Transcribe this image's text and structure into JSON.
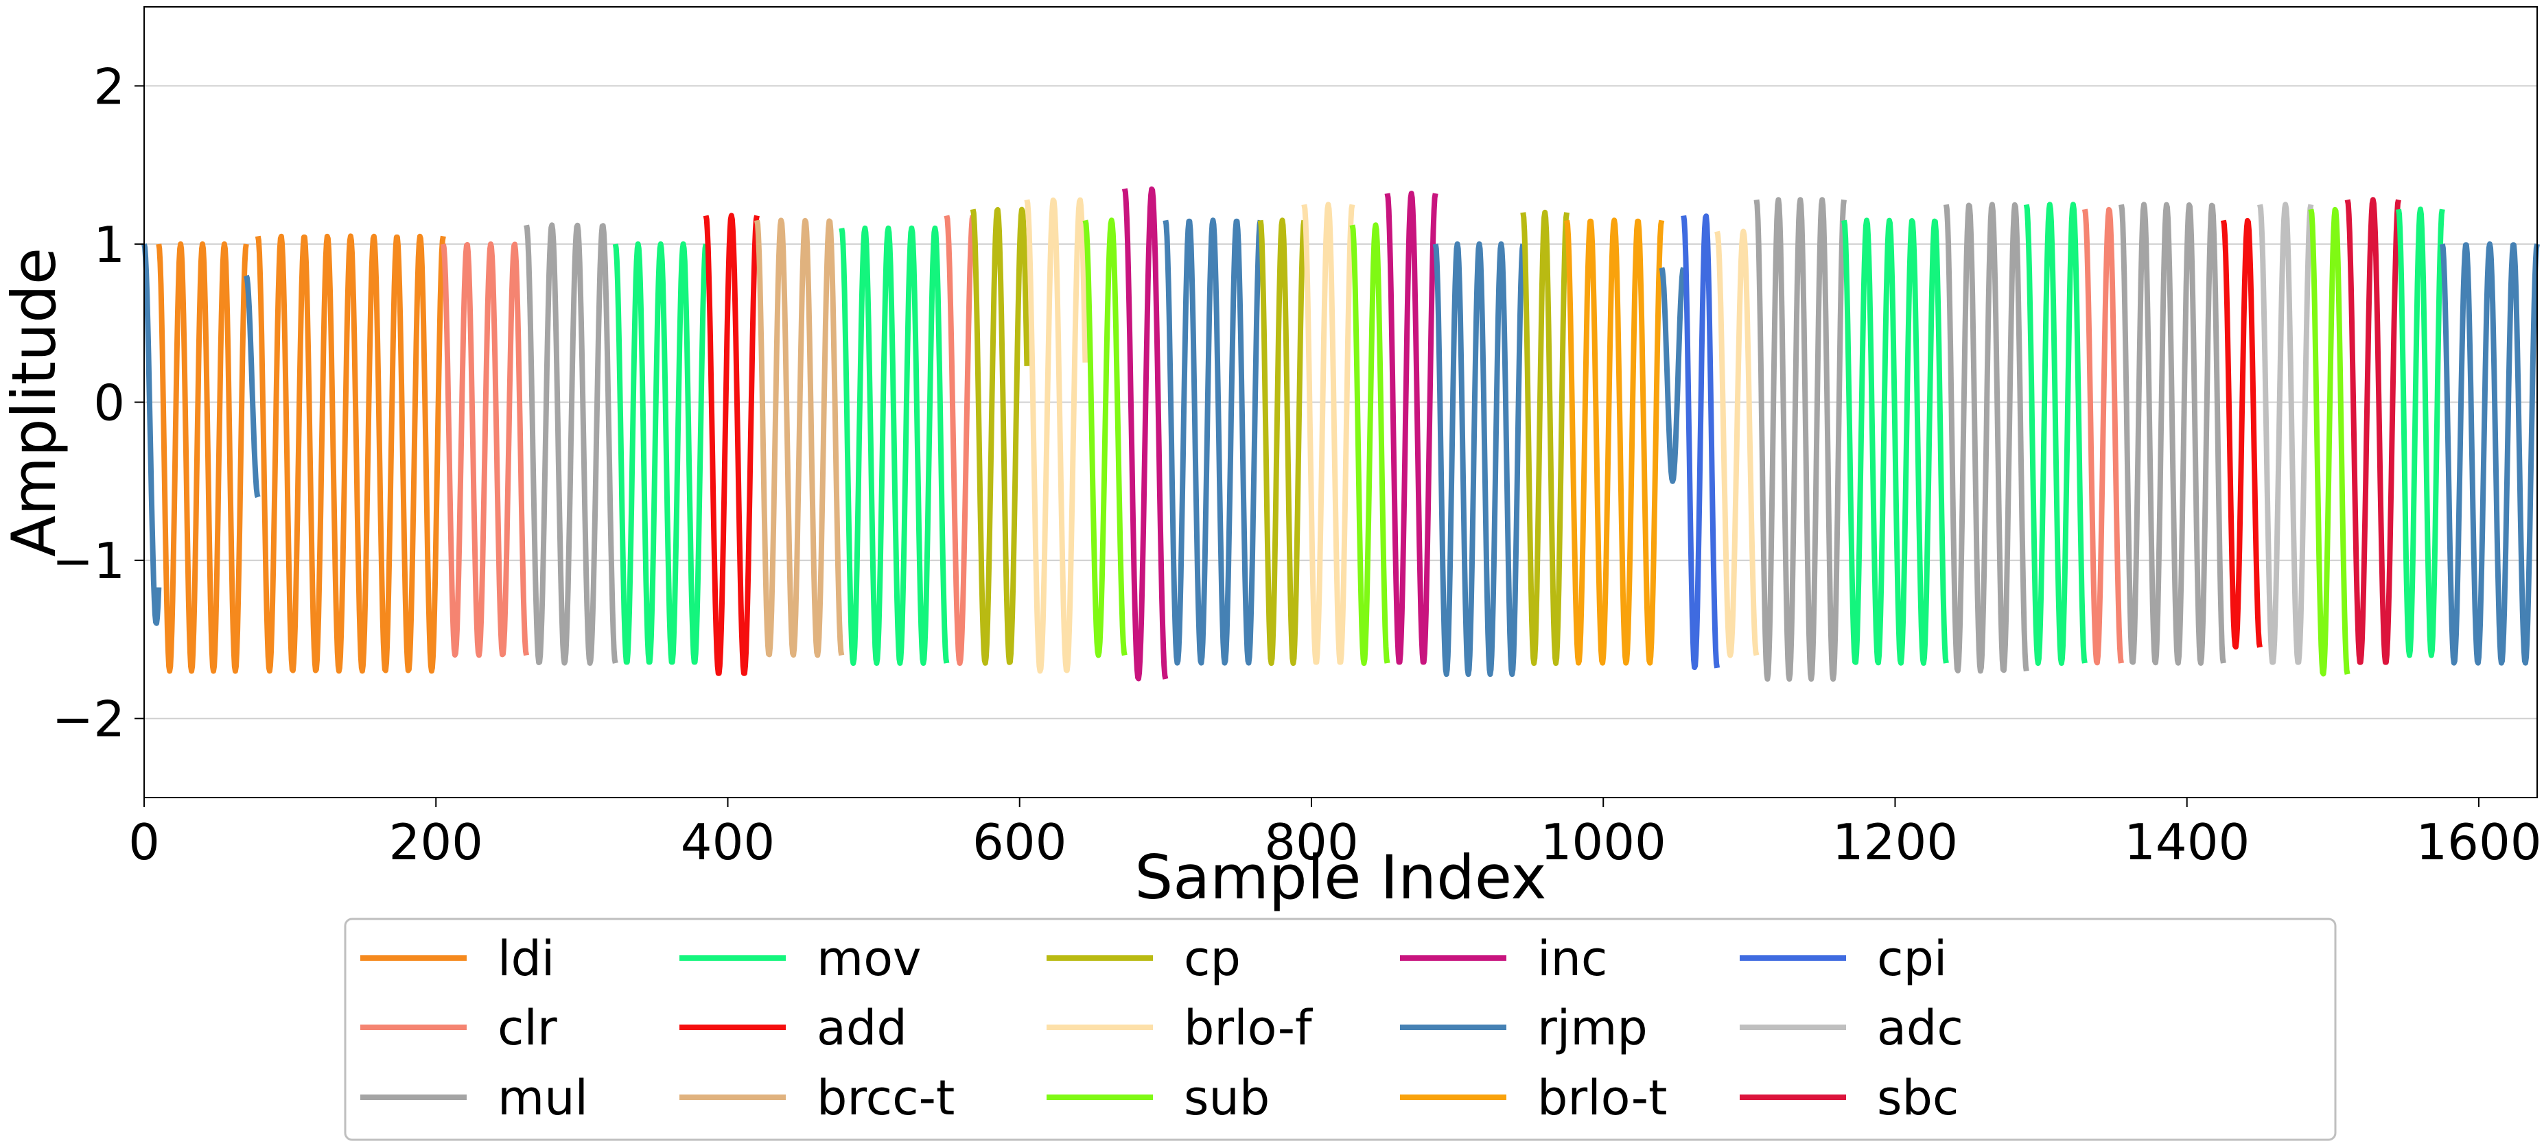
{
  "chart_data": {
    "type": "line",
    "title": "",
    "xlabel": "Sample Index",
    "ylabel": "Amplitude",
    "xlim": [
      0,
      1640
    ],
    "ylim": [
      -2.5,
      2.5
    ],
    "x_ticks": [
      0,
      200,
      400,
      600,
      800,
      1000,
      1200,
      1400,
      1600
    ],
    "x_tick_labels": [
      "0",
      "200",
      "400",
      "600",
      "800",
      "1000",
      "1200",
      "1400",
      "1600"
    ],
    "y_ticks": [
      -2,
      -1,
      0,
      1,
      2
    ],
    "y_tick_labels": [
      "−2",
      "−1",
      "0",
      "1",
      "2"
    ],
    "grid": "horizontal",
    "legend_position": "bottom-center",
    "legend_columns": 6,
    "series": [
      {
        "name": "ldi",
        "color": "#f5891d"
      },
      {
        "name": "clr",
        "color": "#f58471"
      },
      {
        "name": "mul",
        "color": "#a4a4a4"
      },
      {
        "name": "mov",
        "color": "#14f57d"
      },
      {
        "name": "add",
        "color": "#f50e0e"
      },
      {
        "name": "brcc-t",
        "color": "#e0b27e"
      },
      {
        "name": "cp",
        "color": "#b9ba12"
      },
      {
        "name": "brlo-f",
        "color": "#fde0a9"
      },
      {
        "name": "sub",
        "color": "#7ff914"
      },
      {
        "name": "inc",
        "color": "#c8147e"
      },
      {
        "name": "rjmp",
        "color": "#4581b4"
      },
      {
        "name": "brlo-t",
        "color": "#f9a20c"
      },
      {
        "name": "cpi",
        "color": "#3f6be0"
      },
      {
        "name": "adc",
        "color": "#bfbfbf"
      },
      {
        "name": "sbc",
        "color": "#dc143c"
      }
    ],
    "segments": [
      {
        "series": "rjmp",
        "start": 0,
        "end": 10,
        "cycles": 0.6,
        "max": 1.0,
        "min": -1.4
      },
      {
        "series": "ldi",
        "start": 10,
        "end": 70,
        "cycles": 4,
        "max": 1.0,
        "min": -1.7
      },
      {
        "series": "rjmp",
        "start": 70,
        "end": 78,
        "cycles": 0.5,
        "max": 0.8,
        "min": -0.6
      },
      {
        "series": "ldi",
        "start": 78,
        "end": 205,
        "cycles": 8,
        "max": 1.05,
        "min": -1.7
      },
      {
        "series": "clr",
        "start": 205,
        "end": 262,
        "cycles": 3.5,
        "max": 1.0,
        "min": -1.6
      },
      {
        "series": "mul",
        "start": 262,
        "end": 323,
        "cycles": 3.5,
        "max": 1.12,
        "min": -1.65
      },
      {
        "series": "mov",
        "start": 323,
        "end": 385,
        "cycles": 4,
        "max": 1.0,
        "min": -1.65
      },
      {
        "series": "add",
        "start": 385,
        "end": 420,
        "cycles": 2,
        "max": 1.18,
        "min": -1.72
      },
      {
        "series": "brcc-t",
        "start": 420,
        "end": 478,
        "cycles": 3.5,
        "max": 1.15,
        "min": -1.6
      },
      {
        "series": "mov",
        "start": 478,
        "end": 550,
        "cycles": 4.5,
        "max": 1.1,
        "min": -1.65
      },
      {
        "series": "clr",
        "start": 550,
        "end": 568,
        "cycles": 1,
        "max": 1.18,
        "min": -1.65
      },
      {
        "series": "cp",
        "start": 568,
        "end": 605,
        "cycles": 2.2,
        "max": 1.22,
        "min": -1.65
      },
      {
        "series": "brlo-f",
        "start": 605,
        "end": 645,
        "cycles": 2.2,
        "max": 1.28,
        "min": -1.7
      },
      {
        "series": "sub",
        "start": 645,
        "end": 672,
        "cycles": 1.5,
        "max": 1.15,
        "min": -1.6
      },
      {
        "series": "inc",
        "start": 672,
        "end": 700,
        "cycles": 1.5,
        "max": 1.35,
        "min": -1.75
      },
      {
        "series": "rjmp",
        "start": 700,
        "end": 765,
        "cycles": 4,
        "max": 1.15,
        "min": -1.65
      },
      {
        "series": "cp",
        "start": 765,
        "end": 795,
        "cycles": 2,
        "max": 1.15,
        "min": -1.65
      },
      {
        "series": "brlo-f",
        "start": 795,
        "end": 828,
        "cycles": 2,
        "max": 1.25,
        "min": -1.65
      },
      {
        "series": "sub",
        "start": 828,
        "end": 852,
        "cycles": 1.5,
        "max": 1.12,
        "min": -1.65
      },
      {
        "series": "inc",
        "start": 852,
        "end": 885,
        "cycles": 2,
        "max": 1.32,
        "min": -1.65
      },
      {
        "series": "rjmp",
        "start": 885,
        "end": 945,
        "cycles": 4,
        "max": 1.0,
        "min": -1.72
      },
      {
        "series": "cp",
        "start": 945,
        "end": 975,
        "cycles": 2,
        "max": 1.2,
        "min": -1.65
      },
      {
        "series": "brlo-t",
        "start": 975,
        "end": 1040,
        "cycles": 4,
        "max": 1.15,
        "min": -1.65
      },
      {
        "series": "rjmp",
        "start": 1040,
        "end": 1055,
        "cycles": 1,
        "max": 0.85,
        "min": -0.5
      },
      {
        "series": "cpi",
        "start": 1055,
        "end": 1078,
        "cycles": 1.5,
        "max": 1.18,
        "min": -1.68
      },
      {
        "series": "brlo-f",
        "start": 1078,
        "end": 1105,
        "cycles": 1.5,
        "max": 1.08,
        "min": -1.6
      },
      {
        "series": "mul",
        "start": 1105,
        "end": 1165,
        "cycles": 4,
        "max": 1.28,
        "min": -1.75
      },
      {
        "series": "mov",
        "start": 1165,
        "end": 1235,
        "cycles": 4.5,
        "max": 1.15,
        "min": -1.65
      },
      {
        "series": "mul",
        "start": 1235,
        "end": 1290,
        "cycles": 3.5,
        "max": 1.25,
        "min": -1.7
      },
      {
        "series": "mov",
        "start": 1290,
        "end": 1330,
        "cycles": 2.5,
        "max": 1.25,
        "min": -1.65
      },
      {
        "series": "clr",
        "start": 1330,
        "end": 1355,
        "cycles": 1.5,
        "max": 1.22,
        "min": -1.65
      },
      {
        "series": "mul",
        "start": 1355,
        "end": 1425,
        "cycles": 4.5,
        "max": 1.25,
        "min": -1.65
      },
      {
        "series": "add",
        "start": 1425,
        "end": 1450,
        "cycles": 1.5,
        "max": 1.15,
        "min": -1.55
      },
      {
        "series": "adc",
        "start": 1450,
        "end": 1485,
        "cycles": 2,
        "max": 1.25,
        "min": -1.65
      },
      {
        "series": "sub",
        "start": 1485,
        "end": 1510,
        "cycles": 1.5,
        "max": 1.22,
        "min": -1.72
      },
      {
        "series": "sbc",
        "start": 1510,
        "end": 1545,
        "cycles": 2,
        "max": 1.28,
        "min": -1.65
      },
      {
        "series": "mov",
        "start": 1545,
        "end": 1575,
        "cycles": 2,
        "max": 1.22,
        "min": -1.6
      },
      {
        "series": "rjmp",
        "start": 1575,
        "end": 1640,
        "cycles": 4,
        "max": 1.0,
        "min": -1.65
      }
    ]
  }
}
